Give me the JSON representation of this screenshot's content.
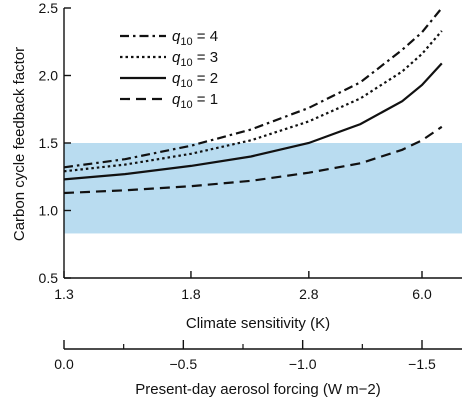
{
  "colors": {
    "band": "#b9dcf0",
    "ink": "#111111"
  },
  "chart_data": {
    "type": "line",
    "title": "",
    "xlabel": "Climate sensitivity (K)",
    "ylabel": "Carbon cycle feedback factor",
    "secondary_xlabel": "Present-day aerosol forcing (W m−2)",
    "x": [
      1.3,
      1.8,
      2.8,
      6.0
    ],
    "x_tick_labels": [
      "1.3",
      "1.8",
      "2.8",
      "6.0"
    ],
    "x_scale": "reciprocal",
    "secondary_x_ticks": [
      0.0,
      -0.5,
      -1.0,
      -1.5
    ],
    "secondary_x_tick_labels": [
      "0.0",
      "−0.5",
      "−1.0",
      "−1.5"
    ],
    "ylim": [
      0.5,
      2.5
    ],
    "y_ticks": [
      0.5,
      1.0,
      1.5,
      2.0,
      2.5
    ],
    "y_tick_labels": [
      "0.5",
      "1.0",
      "1.5",
      "2.0",
      "2.5"
    ],
    "shaded_band": {
      "y_from": 0.83,
      "y_to": 1.5
    },
    "grid": false,
    "legend_position": "top-left",
    "series": [
      {
        "name": "q10 = 4",
        "legend_base": "q",
        "legend_sub": "10",
        "legend_rest": " = 4",
        "dash": "dash-dot",
        "x": [
          1.3,
          1.5,
          1.8,
          2.2,
          2.8,
          3.7,
          5.0,
          6.0,
          7.5
        ],
        "values": [
          1.32,
          1.38,
          1.48,
          1.6,
          1.76,
          1.95,
          2.19,
          2.32,
          2.5
        ]
      },
      {
        "name": "q10 = 3",
        "legend_base": "q",
        "legend_sub": "10",
        "legend_rest": " = 3",
        "dash": "dotted",
        "x": [
          1.3,
          1.5,
          1.8,
          2.2,
          2.8,
          3.7,
          5.0,
          6.0,
          7.5
        ],
        "values": [
          1.29,
          1.34,
          1.42,
          1.52,
          1.66,
          1.83,
          2.03,
          2.16,
          2.33
        ]
      },
      {
        "name": "q10 = 2",
        "legend_base": "q",
        "legend_sub": "10",
        "legend_rest": " = 2",
        "dash": "solid",
        "x": [
          1.3,
          1.5,
          1.8,
          2.2,
          2.8,
          3.7,
          5.0,
          6.0,
          7.5
        ],
        "values": [
          1.23,
          1.27,
          1.33,
          1.4,
          1.5,
          1.64,
          1.81,
          1.93,
          2.09
        ]
      },
      {
        "name": "q10 = 1",
        "legend_base": "q",
        "legend_sub": "10",
        "legend_rest": " = 1",
        "dash": "dashed",
        "x": [
          1.3,
          1.5,
          1.8,
          2.2,
          2.8,
          3.7,
          5.0,
          6.0,
          7.5
        ],
        "values": [
          1.13,
          1.15,
          1.18,
          1.22,
          1.28,
          1.35,
          1.45,
          1.52,
          1.62
        ]
      }
    ]
  }
}
